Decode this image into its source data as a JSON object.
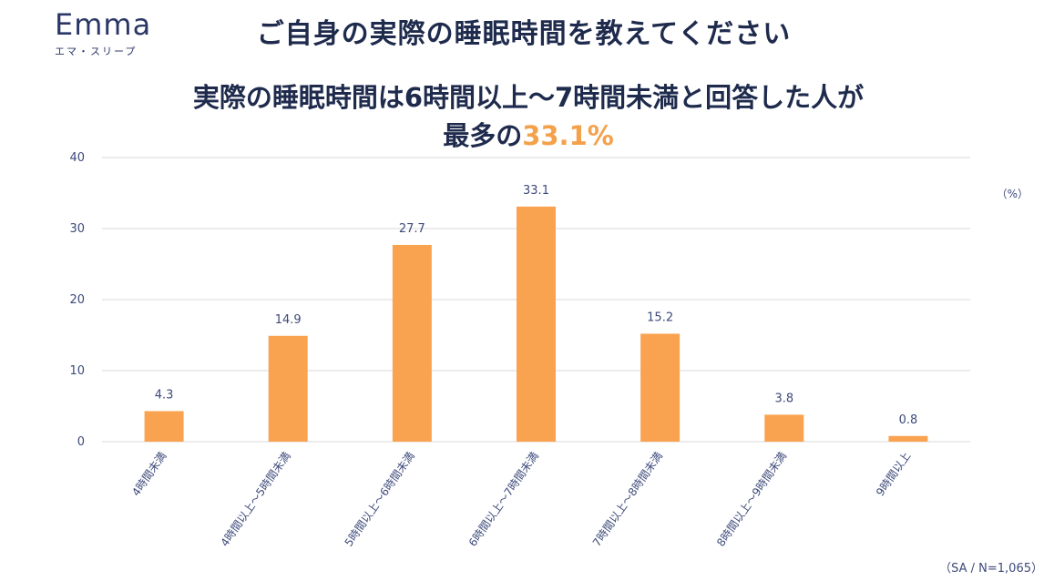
{
  "brand": {
    "name": "Emma",
    "subtitle": "エマ・スリープ"
  },
  "page": {
    "title": "ご自身の実際の睡眠時間を教えてください",
    "headline_line1": "実際の睡眠時間は6時間以上〜7時間未満と回答した人が",
    "headline_line2_prefix": "最多の",
    "headline_line2_highlight": "33.1%",
    "unit": "（%）",
    "footnote": "（SA / N=1,065）"
  },
  "colors": {
    "bar": "#f9a350",
    "text": "#1f2b4d",
    "accent": "#f4a14c",
    "grid": "#d9d9d9",
    "label": "#3d4a7a"
  },
  "chart_data": {
    "type": "bar",
    "title": "",
    "xlabel": "",
    "ylabel": "",
    "ylim": [
      0,
      40
    ],
    "yticks": [
      0,
      10,
      20,
      30,
      40
    ],
    "grid": true,
    "categories": [
      "4時間未満",
      "4時間以上〜5時間未満",
      "5時間以上〜6時間未満",
      "6時間以上〜7時間未満",
      "7時間以上〜8時間未満",
      "8時間以上〜9時間未満",
      "9時間以上"
    ],
    "values": [
      4.3,
      14.9,
      27.7,
      33.1,
      15.2,
      3.8,
      0.8
    ],
    "data_labels": [
      "4.3",
      "14.9",
      "27.7",
      "33.1",
      "15.2",
      "3.8",
      "0.8"
    ]
  }
}
